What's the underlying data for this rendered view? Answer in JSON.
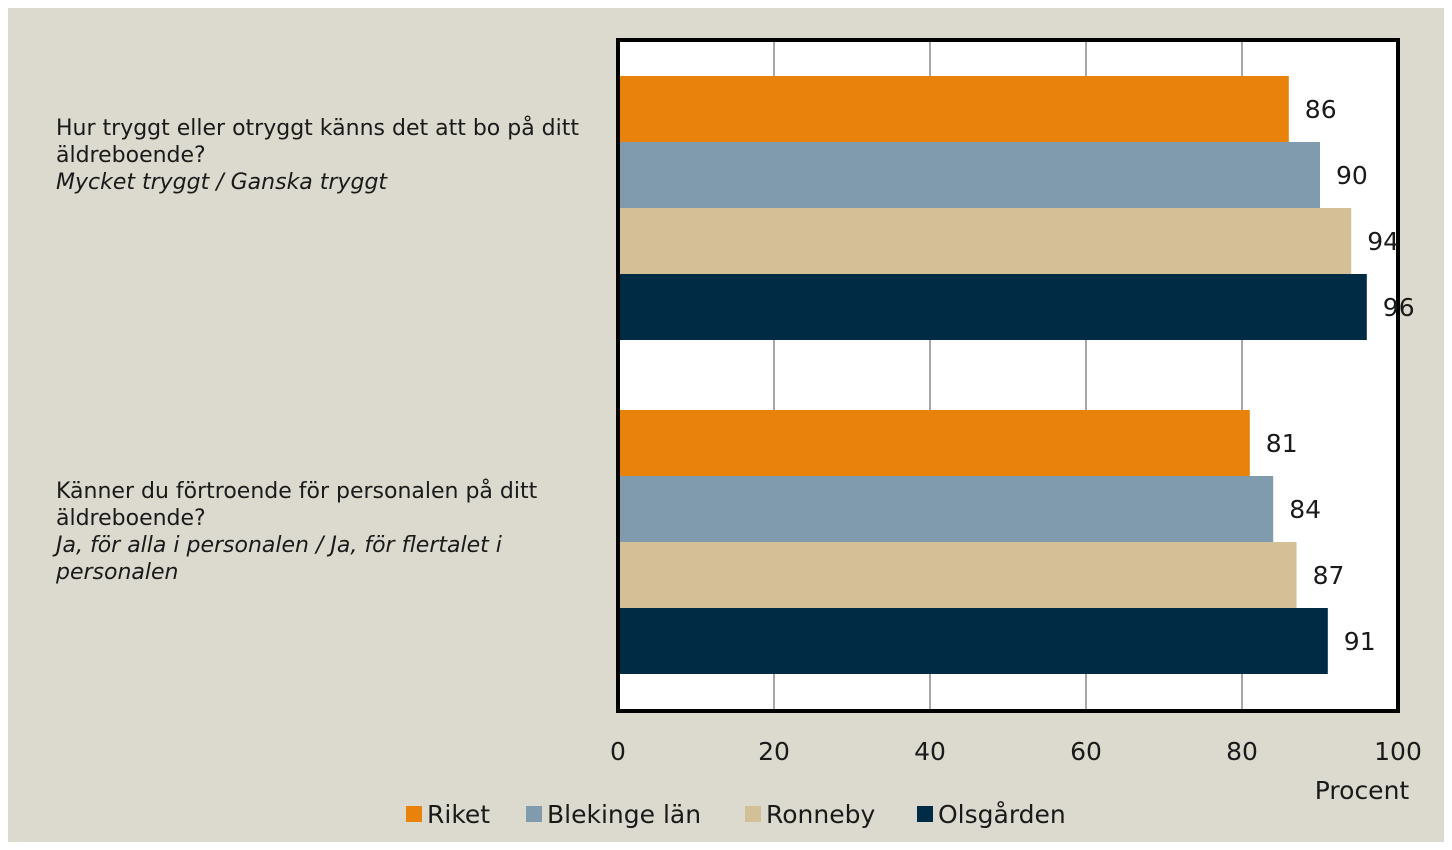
{
  "chart_data": {
    "type": "bar",
    "orientation": "horizontal",
    "categories": [
      {
        "question": "Hur tryggt eller otryggt känns det att bo på ditt äldreboende?",
        "answer": "Mycket tryggt / Ganska tryggt"
      },
      {
        "question": "Känner du förtroende för personalen på ditt äldreboende?",
        "answer": "Ja, för alla i personalen / Ja, för flertalet i personalen"
      }
    ],
    "series": [
      {
        "name": "Riket",
        "color": "#e8820a",
        "values": [
          86,
          81
        ]
      },
      {
        "name": "Blekinge län",
        "color": "#7f9bad",
        "values": [
          90,
          84
        ]
      },
      {
        "name": "Ronneby",
        "color": "#d4c097",
        "values": [
          94,
          87
        ]
      },
      {
        "name": "Olsgården",
        "color": "#002b45",
        "values": [
          96,
          91
        ]
      }
    ],
    "xlabel": "Procent",
    "xlim": [
      0,
      100
    ],
    "xticks": [
      0,
      20,
      40,
      60,
      80,
      100
    ],
    "grid": "vertical",
    "legend": "bottom"
  }
}
